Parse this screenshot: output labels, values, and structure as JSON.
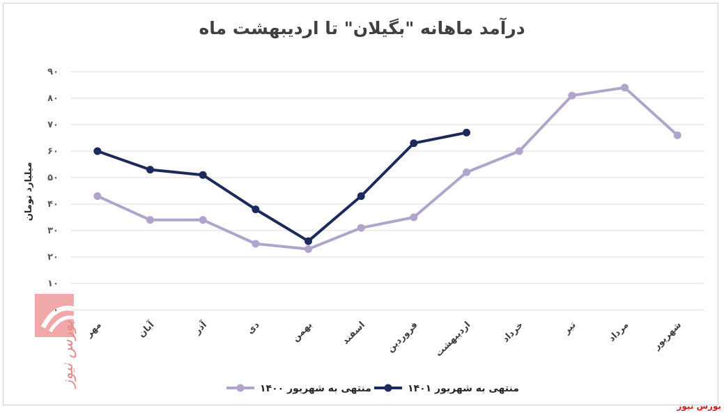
{
  "chart_data": {
    "type": "line",
    "title": "درآمد ماهانه \"بگیلان\" تا اردیبهشت ماه",
    "ylabel": "میلیارد تومان",
    "ylim": [
      0,
      90
    ],
    "yticks": [
      "۰",
      "۱۰",
      "۲۰",
      "۳۰",
      "۴۰",
      "۵۰",
      "۶۰",
      "۷۰",
      "۸۰",
      "۹۰"
    ],
    "categories": [
      "مهر",
      "آبان",
      "آذر",
      "دی",
      "بهمن",
      "اسفند",
      "فروردین",
      "اردیبهشت",
      "خرداد",
      "تیر",
      "مرداد",
      "شهریور"
    ],
    "series": [
      {
        "name": "منتهی به شهریور ۱۴۰۰",
        "color": "#b0a4cc",
        "values": [
          43,
          34,
          34,
          25,
          23,
          31,
          35,
          52,
          60,
          81,
          84,
          66
        ]
      },
      {
        "name": "منتهی به شهریور ۱۴۰۱",
        "color": "#1b2a5b",
        "values": [
          60,
          53,
          51,
          38,
          26,
          43,
          63,
          67,
          null,
          null,
          null,
          null
        ]
      }
    ],
    "grid": true,
    "legend_position": "bottom"
  },
  "watermark": {
    "text": "بورس نیوز"
  },
  "source_label": "بورس نیوز"
}
